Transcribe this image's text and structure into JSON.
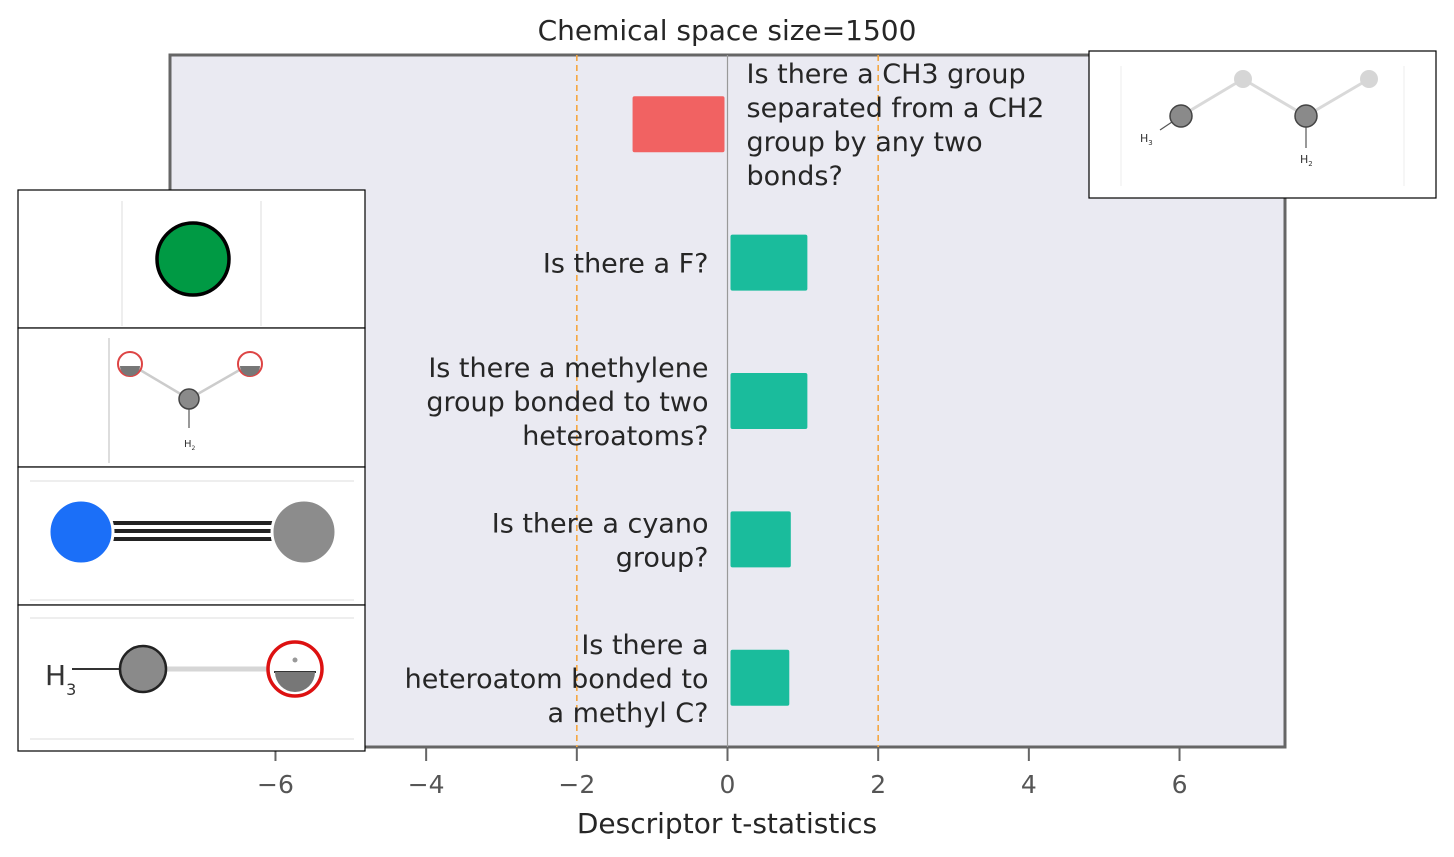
{
  "chart_data": {
    "type": "bar",
    "orientation": "horizontal",
    "title": "Chemical space size=1500",
    "xlabel": "Descriptor t-statistics",
    "ylabel": "",
    "xlim": [
      -7.4,
      7.4
    ],
    "xticks": [
      -6,
      -4,
      -2,
      0,
      2,
      4,
      6
    ],
    "xtick_labels": [
      "−6",
      "−4",
      "−2",
      "0",
      "2",
      "4",
      "6"
    ],
    "reference_lines": [
      -2,
      2
    ],
    "grid": false,
    "categories": [
      "Is there a CH3 group separated from a CH2 group by any two bonds?",
      "Is there a F?",
      "Is there a methylene group bonded to two heteroatoms?",
      "Is there a cyano group?",
      "Is there a heteroatom bonded to a methyl C?"
    ],
    "category_label_lines": [
      [
        "Is there a CH3 group",
        "separated from a CH2",
        "group by any two",
        "bonds?"
      ],
      [
        "Is there a F?"
      ],
      [
        "Is there a methylene",
        "group bonded to two",
        "heteroatoms?"
      ],
      [
        "Is there a cyano",
        "group?"
      ],
      [
        "Is there a",
        "heteroatom bonded to",
        "a methyl C?"
      ]
    ],
    "values": [
      -1.3,
      1.1,
      1.1,
      0.88,
      0.86
    ],
    "colors": {
      "negative": "#f16262",
      "positive": "#1abc9c",
      "plot_background": "#eaeaf2",
      "reference_line": "#f5a742",
      "frame": "#666666"
    },
    "molecule_icons": [
      "ch3-ch2-fragment-icon",
      "fluorine-atom-icon",
      "methylene-two-heteroatoms-icon",
      "cyano-group-icon",
      "methyl-heteroatom-icon"
    ],
    "molecule_labels": {
      "ch3": "H",
      "ch3_sub": "3",
      "ch2": "H",
      "ch2_sub": "2"
    }
  }
}
